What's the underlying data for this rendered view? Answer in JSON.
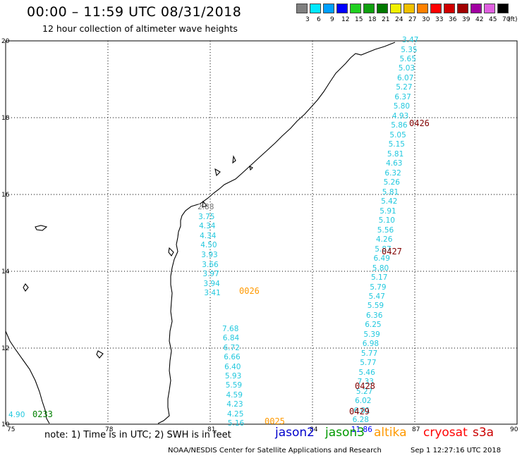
{
  "header": {
    "title": "00:00 – 11:59 UTC 08/31/2018",
    "subtitle": "12 hour collection of altimeter wave heights"
  },
  "legend": {
    "unit": "(ft)",
    "bins": [
      {
        "label": "3",
        "color": "#808080"
      },
      {
        "label": "6",
        "color": "#00e8ff"
      },
      {
        "label": "9",
        "color": "#00a0ff"
      },
      {
        "label": "12",
        "color": "#0000ff"
      },
      {
        "label": "15",
        "color": "#20d020"
      },
      {
        "label": "18",
        "color": "#10a010"
      },
      {
        "label": "21",
        "color": "#007800"
      },
      {
        "label": "24",
        "color": "#f0f000"
      },
      {
        "label": "27",
        "color": "#f0c000"
      },
      {
        "label": "30",
        "color": "#ff8000"
      },
      {
        "label": "33",
        "color": "#ff0000"
      },
      {
        "label": "36",
        "color": "#d00000"
      },
      {
        "label": "39",
        "color": "#a00000"
      },
      {
        "label": "42",
        "color": "#a000a0"
      },
      {
        "label": "45",
        "color": "#e060e0"
      },
      {
        "label": "70",
        "color": "#000000"
      }
    ]
  },
  "axes": {
    "x_ticks": [
      "75",
      "78",
      "81",
      "84",
      "87",
      "90"
    ],
    "y_ticks": [
      "20",
      "18",
      "16",
      "14",
      "12",
      "10"
    ]
  },
  "tracks": [
    {
      "values": [
        "3.47",
        "5.35",
        "5.65",
        "5.03",
        "6.07",
        "5.27",
        "6.37",
        "5.80",
        "4.93",
        "5.86",
        "5.05",
        "5.15",
        "5.81",
        "4.63",
        "6.32",
        "5.26",
        "5.81",
        "5.42",
        "5.91",
        "5.10",
        "5.56",
        "4.26",
        "5.87",
        "6.49",
        "5.80",
        "5.17",
        "5.79",
        "5.47",
        "5.59",
        "6.36",
        "6.25",
        "5.39",
        "6.98",
        "5.77",
        "5.77",
        "5.46",
        "7.33",
        "5.27",
        "6.02",
        "6.01",
        "6.28",
        "11.86"
      ]
    },
    {
      "values": [
        "2.88",
        "3.75",
        "4.34",
        "4.34",
        "4.50",
        "3.93",
        "3.66",
        "3.97",
        "3.94",
        "3.41"
      ]
    },
    {
      "values": [
        "7.68",
        "6.84",
        "6.72",
        "6.66",
        "6.40",
        "5.93",
        "5.59",
        "4.59",
        "4.23",
        "4.25",
        "5.16"
      ]
    },
    {
      "values": [
        "4.90"
      ]
    }
  ],
  "pass_times": [
    {
      "label": "0426",
      "color": "#800000"
    },
    {
      "label": "0427",
      "color": "#800000"
    },
    {
      "label": "0026",
      "color": "#ff9900"
    },
    {
      "label": "0428",
      "color": "#800000"
    },
    {
      "label": "0429",
      "color": "#800000"
    },
    {
      "label": "0025",
      "color": "#ff9900"
    },
    {
      "label": "0233",
      "color": "#008000"
    }
  ],
  "note": "note: 1) Time is in UTC; 2) SWH is in feet",
  "satellites": [
    {
      "label": "jason2",
      "color": "#0000cc"
    },
    {
      "label": "jason3",
      "color": "#009900"
    },
    {
      "label": "altika",
      "color": "#ff9900"
    },
    {
      "label": "cryosat",
      "color": "#ff0000"
    },
    {
      "label": "s3a",
      "color": "#cc0000"
    }
  ],
  "footer": {
    "center": "NOAA/NESDIS Center for Satellite Applications and Research",
    "time": "Sep  1 12:27:16 UTC 2018"
  }
}
